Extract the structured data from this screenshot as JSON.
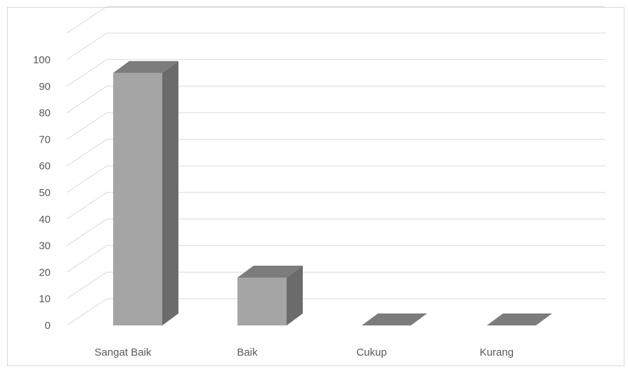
{
  "chart_data": {
    "type": "bar",
    "style": "3d-column",
    "categories": [
      "Sangat Baik",
      "Baik",
      "Cukup",
      "Kurang"
    ],
    "values": [
      95,
      18,
      0,
      0
    ],
    "title": "",
    "xlabel": "",
    "ylabel": "",
    "ylim": [
      0,
      100
    ],
    "yticks": [
      "0",
      "10",
      "20",
      "30",
      "40",
      "50",
      "60",
      "70",
      "80",
      "90",
      "100"
    ],
    "grid": true,
    "legend": "none",
    "colors": {
      "front": "#a5a5a5",
      "side": "#6b6b6b",
      "top": "#7c7c7c",
      "grid": "#d9d9d9",
      "axis_text": "#595959"
    }
  }
}
